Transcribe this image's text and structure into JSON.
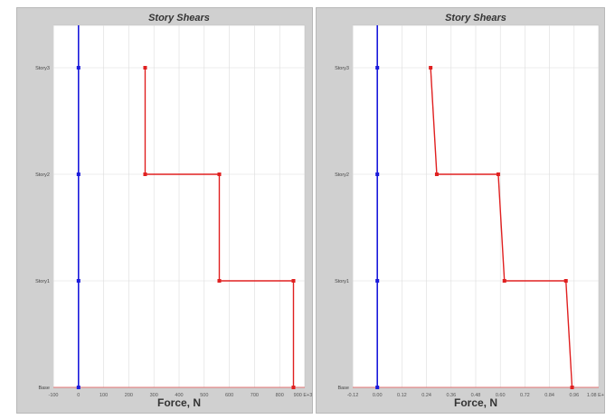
{
  "background": "#d0d0d0",
  "plot_bg": "#ffffff",
  "grid_color": "#dcdcdc",
  "series_colors": {
    "blue": "#1a1adb",
    "red": "#e02020"
  },
  "chart_data": [
    {
      "type": "line",
      "title": "Story Shears",
      "xlabel": "Force, N",
      "xlim": [
        -100,
        900
      ],
      "x_ticks": [
        -100,
        0,
        100,
        200,
        300,
        400,
        500,
        600,
        700,
        800
      ],
      "x_tick_labels": [
        "-100",
        "0",
        "100",
        "200",
        "300",
        "400",
        "500",
        "600",
        "700",
        "800"
      ],
      "x_exponent": "900 E+3",
      "y_categories": [
        "Base",
        "Story1",
        "Story2",
        "Story3"
      ],
      "series": [
        {
          "color": "blue",
          "points": [
            [
              0,
              3
            ],
            [
              0,
              2
            ],
            [
              0,
              1
            ],
            [
              0,
              0
            ]
          ]
        },
        {
          "color": "red",
          "points": [
            [
              265,
              3
            ],
            [
              265,
              2
            ],
            [
              560,
              2
            ],
            [
              560,
              1
            ],
            [
              855,
              1
            ],
            [
              855,
              0
            ]
          ]
        }
      ],
      "grid": true
    },
    {
      "type": "line",
      "title": "Story Shears",
      "xlabel": "Force, N",
      "xlim": [
        -0.12,
        1.08
      ],
      "x_ticks": [
        -0.12,
        0.0,
        0.12,
        0.24,
        0.36,
        0.48,
        0.6,
        0.72,
        0.84,
        0.96
      ],
      "x_tick_labels": [
        "-0.12",
        "0.00",
        "0.12",
        "0.24",
        "0.36",
        "0.48",
        "0.60",
        "0.72",
        "0.84",
        "0.96"
      ],
      "x_exponent": "1.08 E+6",
      "y_categories": [
        "Base",
        "Story1",
        "Story2",
        "Story3"
      ],
      "series": [
        {
          "color": "blue",
          "points": [
            [
              0,
              3
            ],
            [
              0,
              2
            ],
            [
              0,
              1
            ],
            [
              0,
              0
            ]
          ]
        },
        {
          "color": "red",
          "points": [
            [
              0.26,
              3
            ],
            [
              0.29,
              2
            ],
            [
              0.59,
              2
            ],
            [
              0.62,
              1
            ],
            [
              0.92,
              1
            ],
            [
              0.95,
              0
            ]
          ]
        }
      ],
      "grid": true
    }
  ]
}
